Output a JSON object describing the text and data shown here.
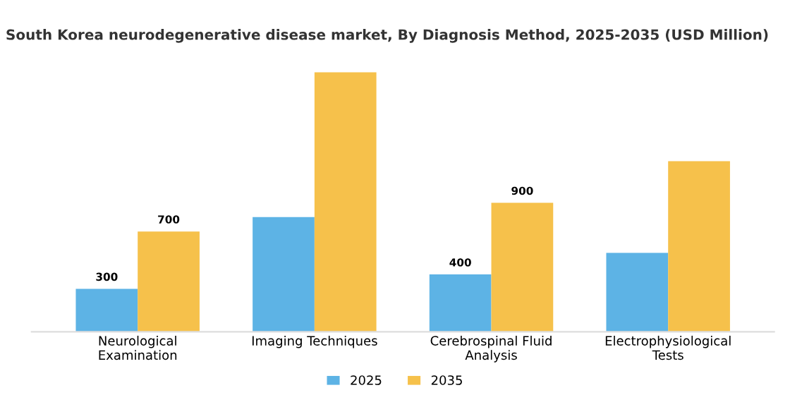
{
  "chart_data": {
    "type": "bar",
    "title": "South Korea neurodegenerative disease market, By Diagnosis Method, 2025-2035 (USD Million)",
    "categories": [
      "Neurological\nExamination",
      "Imaging Techniques",
      "Cerebrospinal Fluid\nAnalysis",
      "Electrophysiological\nTests"
    ],
    "series": [
      {
        "name": "2025",
        "color": "#5db3e5",
        "values": [
          300,
          800,
          400,
          550
        ],
        "value_labels": [
          "300",
          null,
          "400",
          null
        ]
      },
      {
        "name": "2035",
        "color": "#f6c14b",
        "values": [
          700,
          1810,
          900,
          1190
        ],
        "value_labels": [
          "700",
          null,
          "900",
          null
        ]
      }
    ],
    "legend": "bottom",
    "grid": false
  }
}
